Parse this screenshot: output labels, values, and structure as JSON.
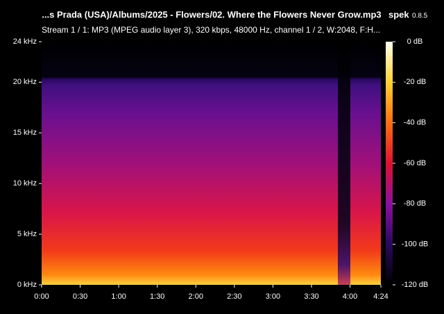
{
  "app": {
    "name": "spek",
    "version": "0.8.5"
  },
  "chart_data": {
    "type": "spectrogram",
    "title": "...s Prada (USA)/Albums/2025 - Flowers/02. Where the Flowers Never Grow.mp3",
    "subtitle": "Stream 1 / 1: MP3 (MPEG audio layer 3), 320 kbps, 48000 Hz, channel 1 / 2, W:2048, F:H...",
    "xlim": [
      0,
      264
    ],
    "xticks": [
      {
        "value": 0,
        "label": "0:00"
      },
      {
        "value": 30,
        "label": "0:30"
      },
      {
        "value": 60,
        "label": "1:00"
      },
      {
        "value": 90,
        "label": "1:30"
      },
      {
        "value": 120,
        "label": "2:00"
      },
      {
        "value": 150,
        "label": "2:30"
      },
      {
        "value": 180,
        "label": "3:00"
      },
      {
        "value": 210,
        "label": "3:30"
      },
      {
        "value": 240,
        "label": "4:00"
      },
      {
        "value": 264,
        "label": "4:24"
      }
    ],
    "ylim": [
      0,
      24
    ],
    "yticks": [
      {
        "value": 0,
        "label": "0 kHz"
      },
      {
        "value": 5,
        "label": "5 kHz"
      },
      {
        "value": 10,
        "label": "10 kHz"
      },
      {
        "value": 15,
        "label": "15 kHz"
      },
      {
        "value": 20,
        "label": "20 kHz"
      },
      {
        "value": 24,
        "label": "24 kHz"
      }
    ],
    "zlim": [
      -120,
      0
    ],
    "zticks": [
      {
        "value": 0,
        "label": "0 dB"
      },
      {
        "value": -20,
        "label": "-20 dB"
      },
      {
        "value": -40,
        "label": "-40 dB"
      },
      {
        "value": -60,
        "label": "-60 dB"
      },
      {
        "value": -80,
        "label": "-80 dB"
      },
      {
        "value": -100,
        "label": "-100 dB"
      },
      {
        "value": -120,
        "label": "-120 dB"
      }
    ]
  }
}
